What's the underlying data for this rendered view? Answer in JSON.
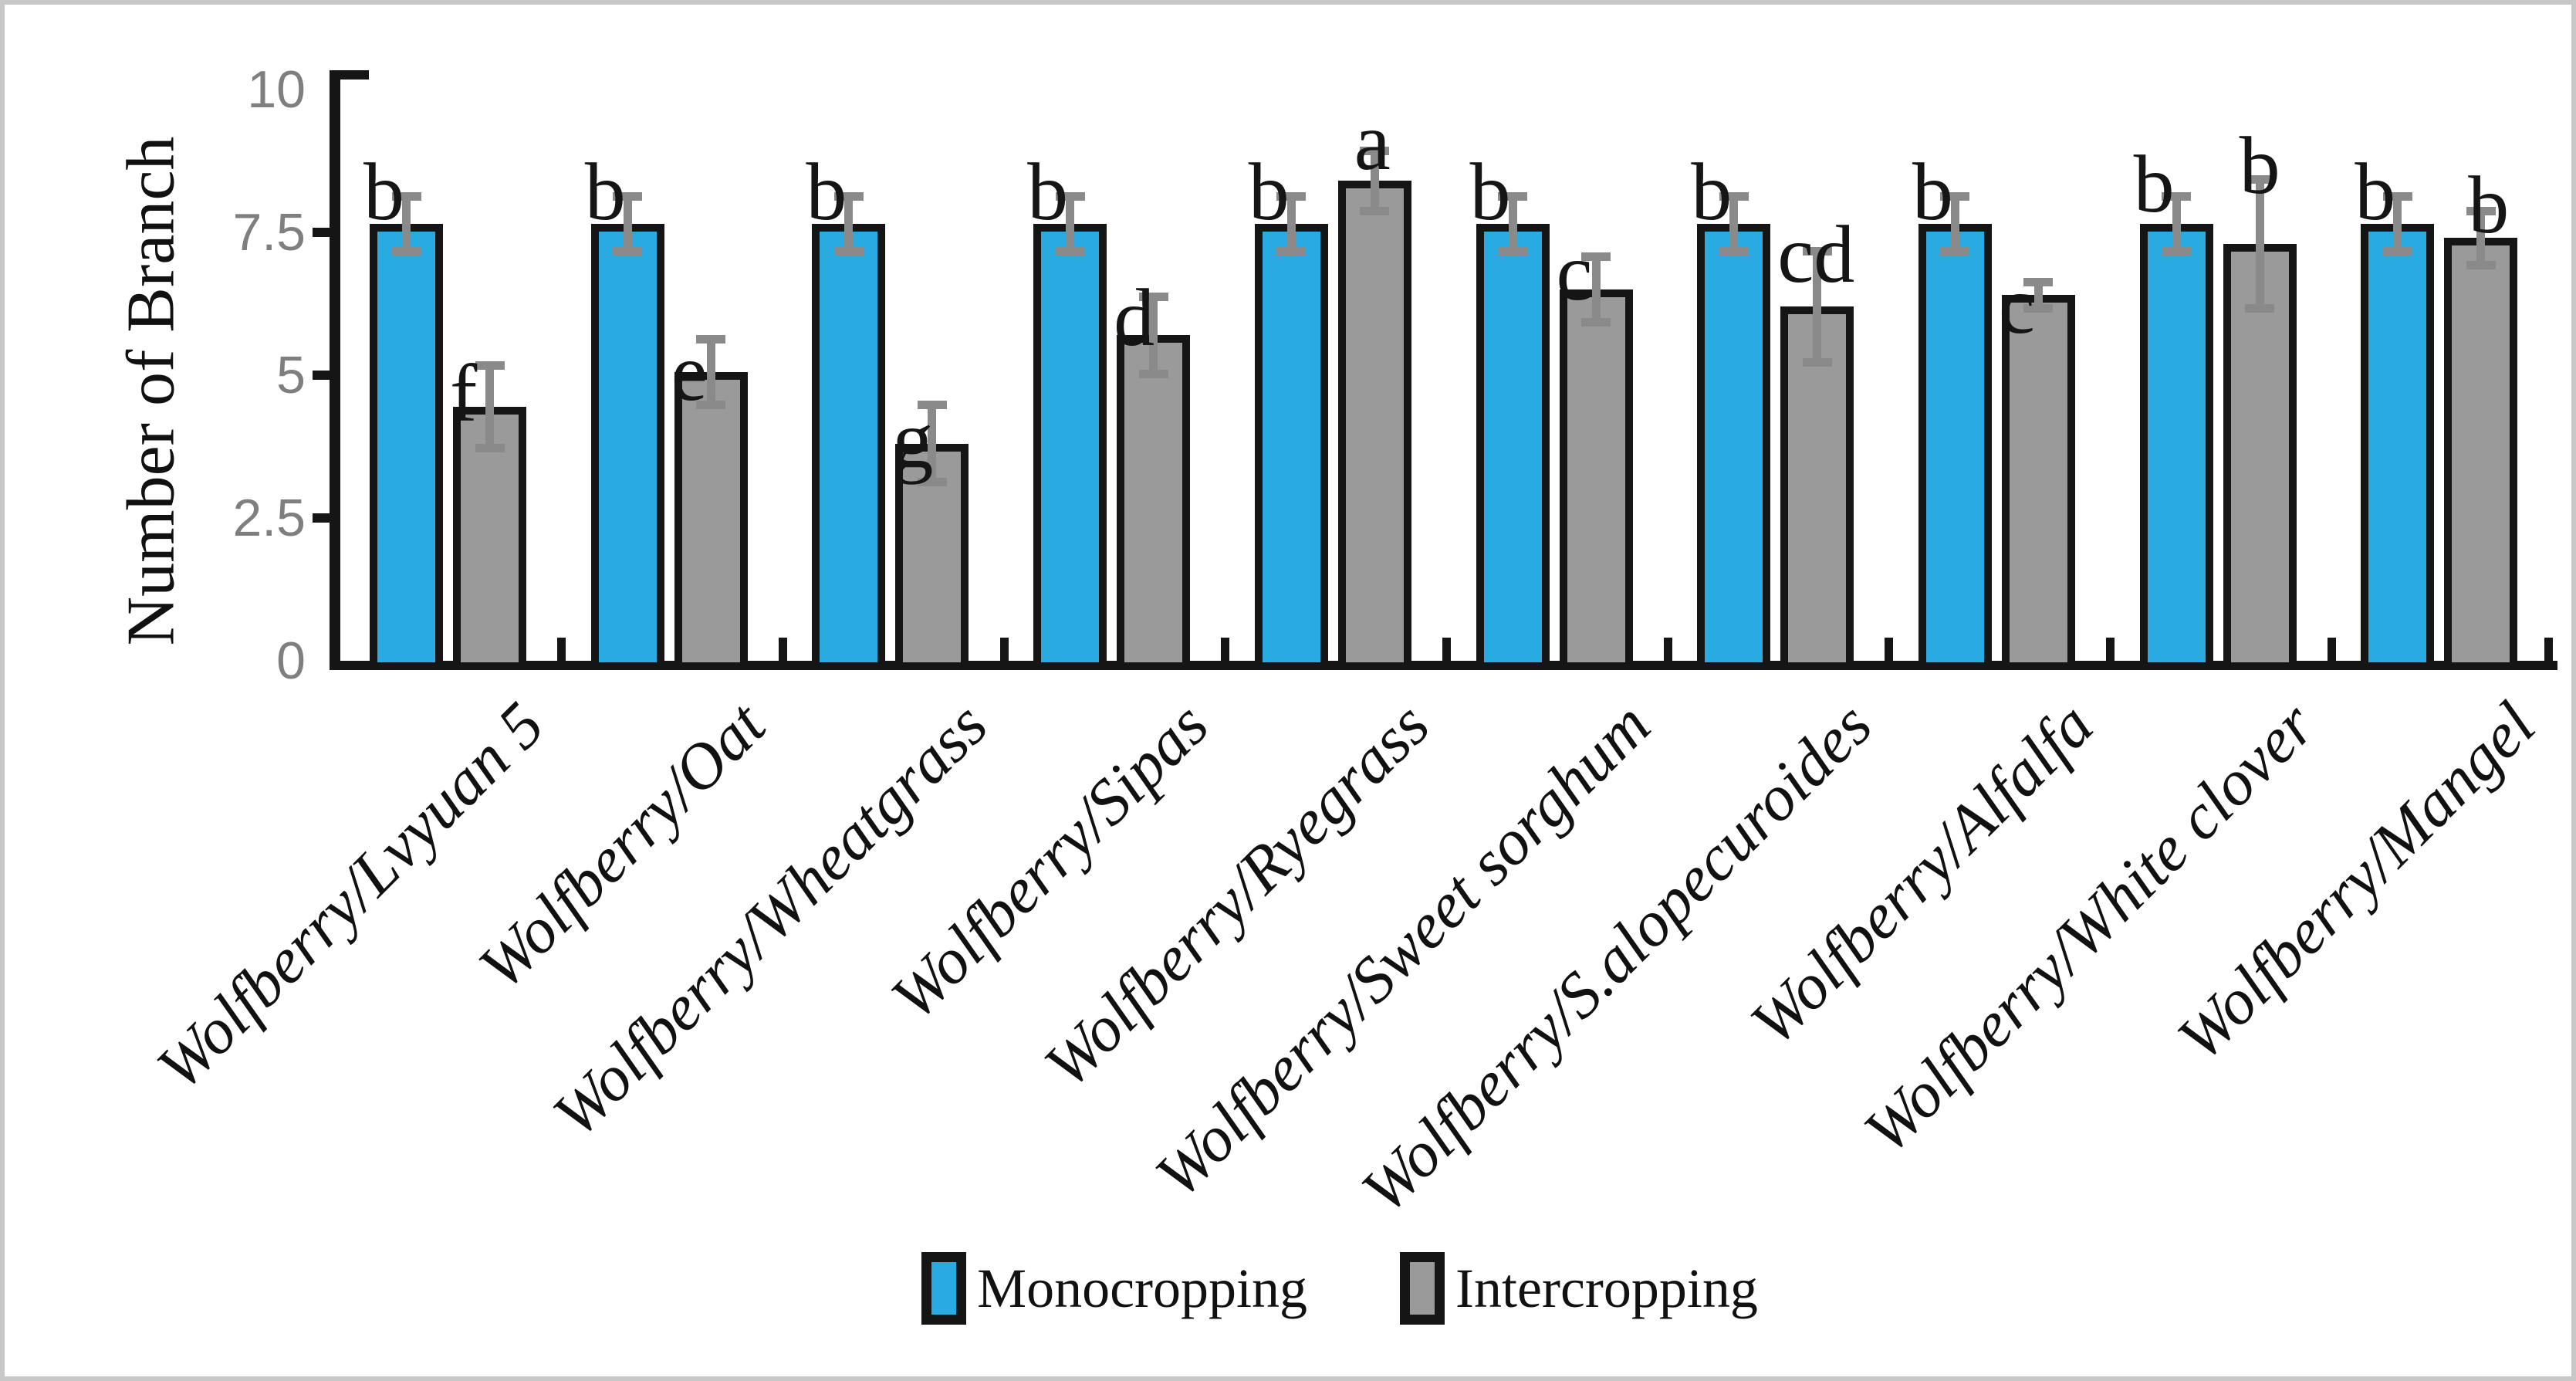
{
  "figure": {
    "background": "#ffffff",
    "frame_color": "#c8c8c8"
  },
  "chart_data": {
    "type": "bar",
    "title": "",
    "xlabel": "",
    "ylabel": "Number of Branch",
    "ylim": [
      0,
      10
    ],
    "yticks": [
      10,
      7.5,
      5,
      2.5,
      0
    ],
    "ytick_labels": [
      "10",
      "7.5",
      "5",
      "2.5",
      "0"
    ],
    "grid": false,
    "legend_position": "bottom",
    "categories": [
      "Wolfberry/Lvyuan 5",
      "Wolfberry/Oat",
      "Wolfberry/Wheatgrass",
      "Wolfberry/Sipas",
      "Wolfberry/Ryegrass",
      "Wolfberry/Sweet sorghum",
      "Wolfberry/S.alopecuroides",
      "Wolfberry/Alfalfa",
      "Wolfberry/White clover",
      "Wolfberry/Mangel"
    ],
    "series": [
      {
        "name": "Monocropping",
        "color": "#29abe2",
        "values": [
          7.65,
          7.65,
          7.65,
          7.65,
          7.65,
          7.65,
          7.65,
          7.65,
          7.65,
          7.65
        ],
        "errors": [
          0.55,
          0.55,
          0.55,
          0.55,
          0.55,
          0.55,
          0.55,
          0.55,
          0.55,
          0.55
        ],
        "letters": [
          "b",
          "b",
          "b",
          "b",
          "b",
          "b",
          "b",
          "b",
          "b",
          "b"
        ],
        "letter_dy": [
          -4,
          -4,
          -4,
          -4,
          -4,
          -4,
          -4,
          -4,
          -14,
          -4
        ],
        "letter_dx": [
          0,
          0,
          0,
          0,
          0,
          0,
          0,
          0,
          0,
          0
        ]
      },
      {
        "name": "Intercropping",
        "color": "#9a9a9a",
        "values": [
          4.45,
          5.05,
          3.8,
          5.7,
          8.4,
          6.5,
          6.2,
          6.4,
          7.3,
          7.4
        ],
        "errors": [
          0.8,
          0.65,
          0.75,
          0.75,
          0.6,
          0.65,
          1.05,
          0.3,
          1.2,
          0.55
        ],
        "letters": [
          "f",
          "e",
          "g",
          "d",
          "a",
          "c",
          "cd",
          "c",
          "b",
          "b"
        ],
        "letter_dy": [
          20,
          38,
          32,
          15,
          -14,
          15,
          -30,
          50,
          -64,
          -6
        ],
        "letter_dx": [
          0,
          0,
          0,
          0,
          25,
          0,
          0,
          0,
          25,
          35
        ]
      }
    ],
    "error_bar_color": "#8a8a8a",
    "bar_outline_color": "#151515",
    "axis_color": "#151515",
    "tick_label_color": "#7f7f7f"
  },
  "legend": {
    "items": [
      {
        "label": "Monocropping",
        "color": "#29abe2"
      },
      {
        "label": "Intercropping",
        "color": "#9a9a9a"
      }
    ]
  }
}
